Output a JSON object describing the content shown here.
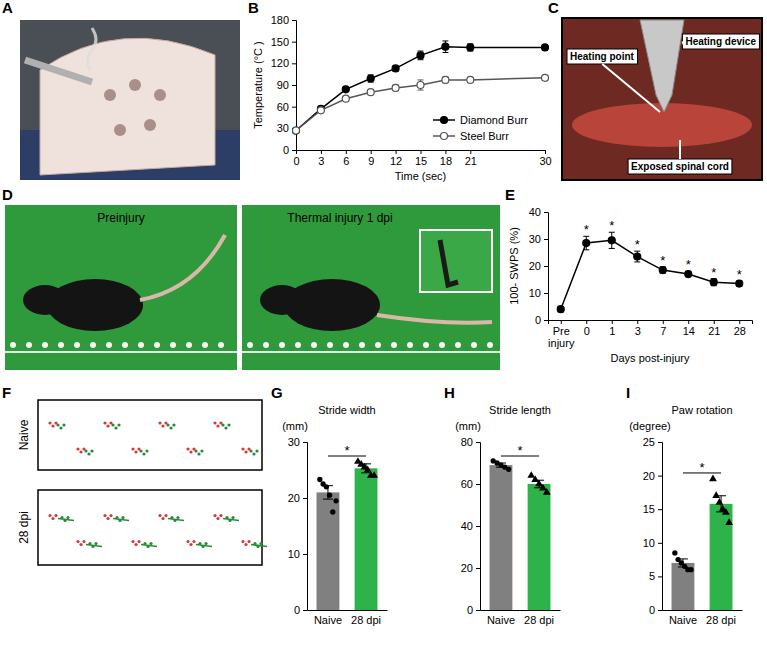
{
  "chart_data": [
    {
      "type": "line",
      "panel": "B",
      "xlabel": "Time (sec)",
      "ylabel": "Temperature (°C )",
      "x": [
        0,
        3,
        6,
        9,
        12,
        15,
        18,
        21,
        30
      ],
      "xlim": [
        0,
        30
      ],
      "xticks": [
        0,
        3,
        6,
        9,
        12,
        15,
        18,
        21,
        30
      ],
      "ylim": [
        0,
        180
      ],
      "yticks": [
        0,
        30,
        60,
        90,
        120,
        150,
        180
      ],
      "legend": "lower right",
      "series": [
        {
          "name": "Diamond Burr",
          "color": "#000000",
          "marker": "circle",
          "values": [
            27,
            57,
            84,
            99,
            113,
            131,
            143,
            142,
            142
          ],
          "errors": [
            1,
            3,
            3,
            5,
            4,
            6,
            8,
            5,
            4
          ]
        },
        {
          "name": "Steel Burr",
          "color": "#555555",
          "marker": "open_circle",
          "values": [
            27,
            55,
            71,
            80,
            86,
            90,
            97,
            97,
            100
          ],
          "errors": [
            1,
            3,
            3,
            3,
            4,
            7,
            4,
            3,
            3
          ]
        }
      ]
    },
    {
      "type": "line",
      "panel": "E",
      "xlabel": "Days post-injury",
      "ylabel": "100- SWPS (%)",
      "categories": [
        "Pre injury",
        "0",
        "1",
        "3",
        "7",
        "14",
        "21",
        "28"
      ],
      "ylim": [
        0,
        40
      ],
      "yticks": [
        0,
        10,
        20,
        30,
        40
      ],
      "series": [
        {
          "color": "#000000",
          "marker": "circle",
          "values": [
            4,
            28.5,
            29.5,
            23.5,
            18.5,
            17,
            14,
            13.5
          ],
          "errors": [
            1,
            2.5,
            3,
            2,
            1.2,
            1,
            1.3,
            1
          ]
        }
      ],
      "annotations": [
        {
          "x": "0",
          "text": "*"
        },
        {
          "x": "1",
          "text": "*"
        },
        {
          "x": "3",
          "text": "*"
        },
        {
          "x": "7",
          "text": "*"
        },
        {
          "x": "14",
          "text": "*"
        },
        {
          "x": "21",
          "text": "*"
        },
        {
          "x": "28",
          "text": "*"
        }
      ]
    },
    {
      "type": "bar",
      "panel": "G",
      "title": "Stride width",
      "ylabel": "(mm)",
      "categories": [
        "Naive",
        "28 dpi"
      ],
      "values": [
        21,
        25.3
      ],
      "errors": [
        1.2,
        0.8
      ],
      "colors": [
        "#808080",
        "#2eb34a"
      ],
      "ylim": [
        0,
        30
      ],
      "yticks": [
        0,
        10,
        20,
        30
      ],
      "points": [
        {
          "marker": "circle",
          "values": [
            23.3,
            22.5,
            22,
            20.5,
            17.5,
            19.5
          ]
        },
        {
          "marker": "triangle",
          "values": [
            26.5,
            26,
            25.5,
            25,
            24,
            24
          ]
        }
      ],
      "annotations": [
        {
          "text": "*"
        }
      ]
    },
    {
      "type": "bar",
      "panel": "H",
      "title": "Stride length",
      "ylabel": "(mm)",
      "categories": [
        "Naive",
        "28 dpi"
      ],
      "values": [
        69,
        60
      ],
      "errors": [
        1,
        1.8
      ],
      "colors": [
        "#808080",
        "#2eb34a"
      ],
      "ylim": [
        0,
        80
      ],
      "yticks": [
        0,
        20,
        40,
        60,
        80
      ],
      "points": [
        {
          "marker": "circle",
          "values": [
            71,
            70,
            69,
            68,
            67
          ]
        },
        {
          "marker": "triangle",
          "values": [
            64,
            62,
            60,
            58,
            56
          ]
        }
      ],
      "annotations": [
        {
          "text": "*"
        }
      ]
    },
    {
      "type": "bar",
      "panel": "I",
      "title": "Paw rotation",
      "ylabel": "(degree)",
      "categories": [
        "Naive",
        "28 dpi"
      ],
      "values": [
        7,
        15.8
      ],
      "errors": [
        0.6,
        1.2
      ],
      "colors": [
        "#808080",
        "#2eb34a"
      ],
      "ylim": [
        0,
        25
      ],
      "yticks": [
        0,
        5,
        10,
        15,
        20,
        25
      ],
      "points": [
        {
          "marker": "circle",
          "values": [
            8.5,
            7.5,
            7,
            6.5,
            6,
            6
          ]
        },
        {
          "marker": "triangle",
          "values": [
            19.5,
            17,
            16,
            15,
            14.5,
            13
          ]
        }
      ],
      "annotations": [
        {
          "text": "*"
        }
      ]
    }
  ],
  "images": [
    {
      "panel": "A"
    },
    {
      "panel": "C",
      "labels": [
        "Heating point",
        "Heating device",
        "Exposed spinal cord"
      ]
    },
    {
      "panel": "D",
      "labels": [
        "Preinjury",
        "Thermal injury 1 dpi"
      ]
    },
    {
      "panel": "F",
      "labels": [
        "Naive",
        "28 dpi"
      ]
    }
  ]
}
